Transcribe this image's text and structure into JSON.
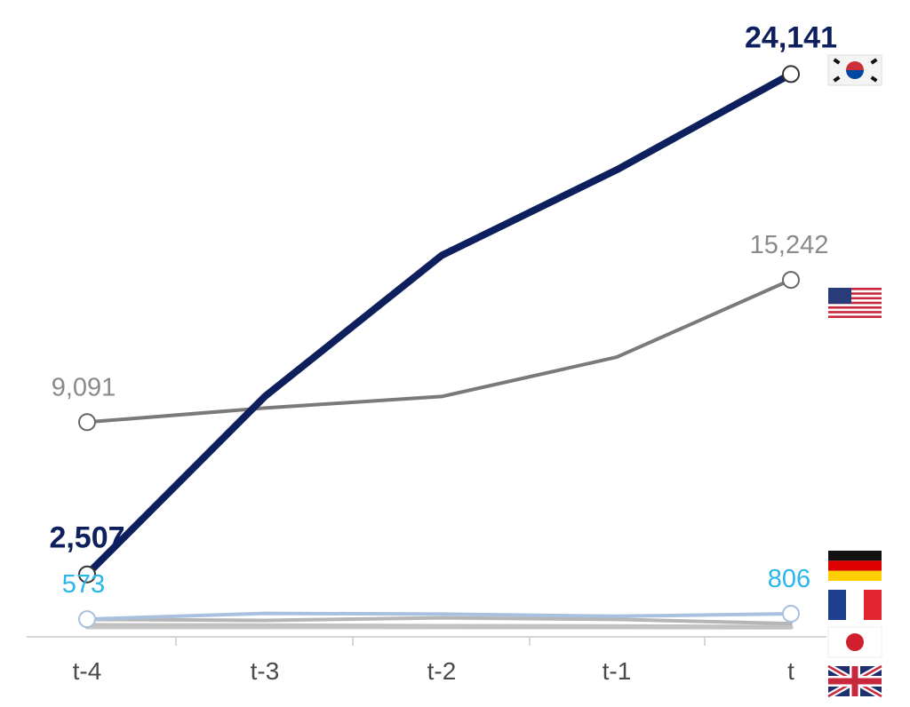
{
  "chart_data": {
    "type": "line",
    "categories": [
      "t-4",
      "t-3",
      "t-2",
      "t-1",
      "t"
    ],
    "ylim": [
      0,
      25500
    ],
    "grid": false,
    "series": [
      {
        "key": "kor",
        "values": [
          2507,
          10200,
          16300,
          20000,
          24141
        ],
        "color": "#0d1f5c",
        "flag": "korea-flag-icon",
        "labels": {
          "first": "2,507",
          "last": "24,141"
        }
      },
      {
        "key": "usa",
        "values": [
          9091,
          9700,
          10200,
          11900,
          15242
        ],
        "color": "#7a7a7a",
        "flag": "usa-flag-icon",
        "labels": {
          "first": "9,091",
          "last": "15,242"
        }
      },
      {
        "key": "deu",
        "values": [
          573,
          820,
          790,
          700,
          806
        ],
        "color": "#a9c1de",
        "flag": "germany-flag-icon",
        "labels": {
          "first": "573",
          "last": "806"
        }
      },
      {
        "key": "fra",
        "values": [
          560,
          520,
          630,
          560,
          380
        ],
        "color": "#b5b5b5",
        "flag": "france-flag-icon",
        "labels": {}
      },
      {
        "key": "jpn",
        "values": [
          310,
          300,
          270,
          260,
          230
        ],
        "color": "#c2c2c2",
        "flag": "japan-flag-icon",
        "labels": {}
      },
      {
        "key": "gbr",
        "values": [
          230,
          230,
          230,
          230,
          220
        ],
        "color": "#c8c8c8",
        "flag": "uk-flag-icon",
        "labels": {}
      }
    ]
  }
}
